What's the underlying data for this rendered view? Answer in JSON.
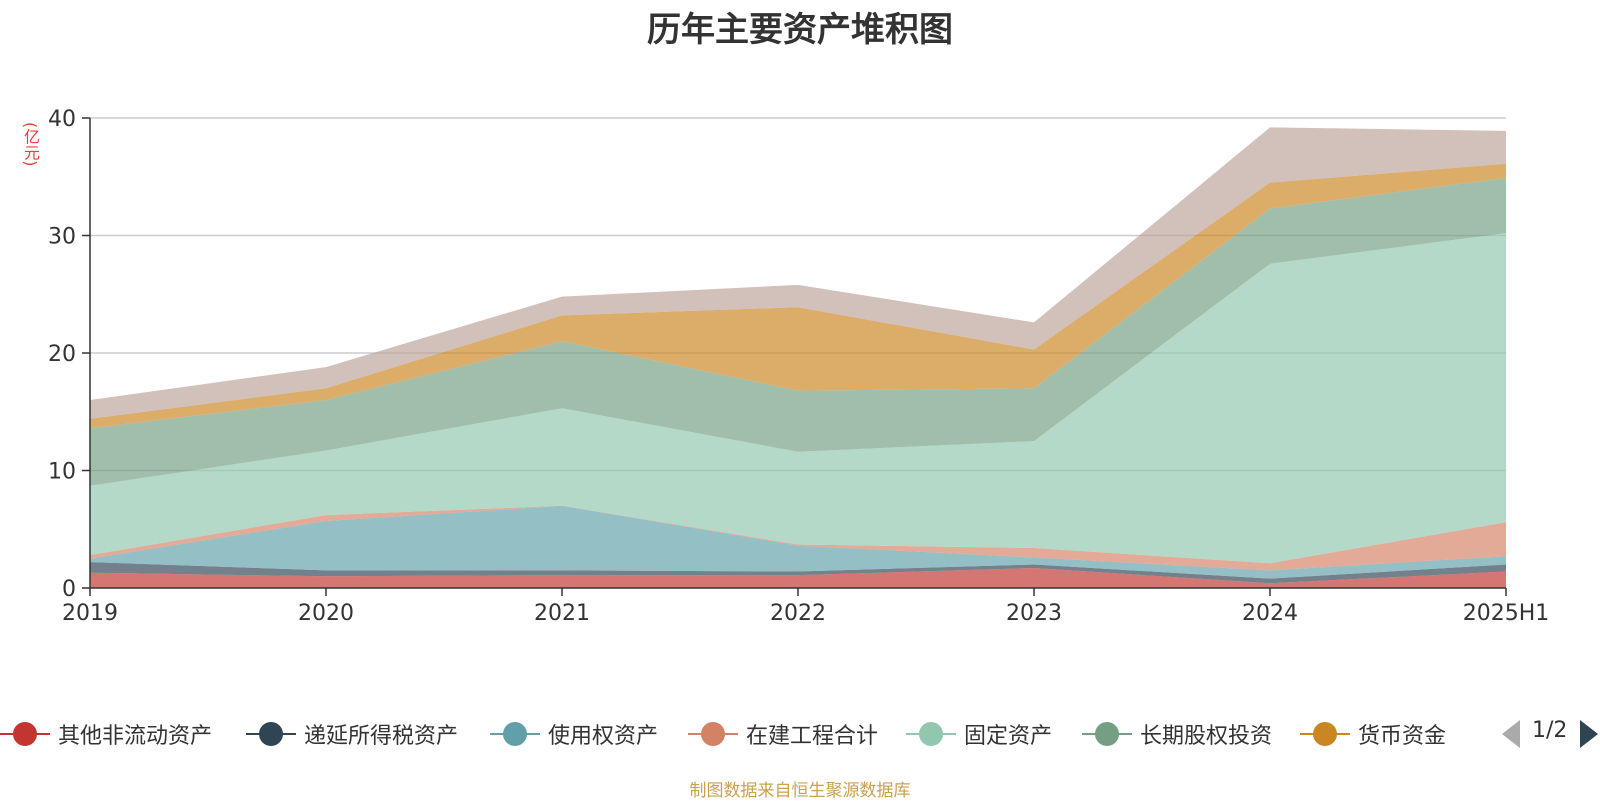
{
  "chart_data": {
    "type": "area",
    "stacked": true,
    "title": "历年主要资产堆积图",
    "ylabel": "(亿元)",
    "xlabel": "",
    "categories": [
      "2019",
      "2020",
      "2021",
      "2022",
      "2023",
      "2024",
      "2025H1"
    ],
    "ylim": [
      0,
      40
    ],
    "yticks": [
      0,
      10,
      20,
      30,
      40
    ],
    "grid": true,
    "legend_position": "bottom",
    "series": [
      {
        "name": "其他非流动资产",
        "color": "#c23531",
        "values": [
          1.3,
          1.0,
          1.1,
          1.1,
          1.7,
          0.4,
          1.4
        ]
      },
      {
        "name": "递延所得税资产",
        "color": "#2f4554",
        "values": [
          0.9,
          0.5,
          0.4,
          0.3,
          0.3,
          0.4,
          0.6
        ]
      },
      {
        "name": "使用权资产",
        "color": "#61a0a8",
        "values": [
          0.3,
          4.2,
          5.5,
          2.2,
          0.6,
          0.7,
          0.7
        ]
      },
      {
        "name": "在建工程合计",
        "color": "#d48265",
        "values": [
          0.3,
          0.5,
          0.0,
          0.1,
          0.8,
          0.6,
          2.9
        ]
      },
      {
        "name": "固定资产",
        "color": "#91c7ae",
        "values": [
          5.9,
          5.5,
          8.3,
          7.9,
          9.1,
          25.5,
          24.6
        ]
      },
      {
        "name": "长期股权投资",
        "color": "#749f83",
        "values": [
          4.9,
          4.3,
          5.7,
          5.2,
          4.5,
          4.7,
          4.7
        ]
      },
      {
        "name": "货币资金",
        "color": "#ca8622",
        "values": [
          0.8,
          1.0,
          2.2,
          7.1,
          3.3,
          2.2,
          1.2
        ]
      },
      {
        "name": "",
        "color": "#bda29a",
        "values": [
          1.6,
          1.8,
          1.6,
          1.9,
          2.3,
          4.7,
          2.8
        ]
      }
    ]
  },
  "legend": {
    "page_indicator": "1/2"
  },
  "source_note": "制图数据来自恒生聚源数据库"
}
